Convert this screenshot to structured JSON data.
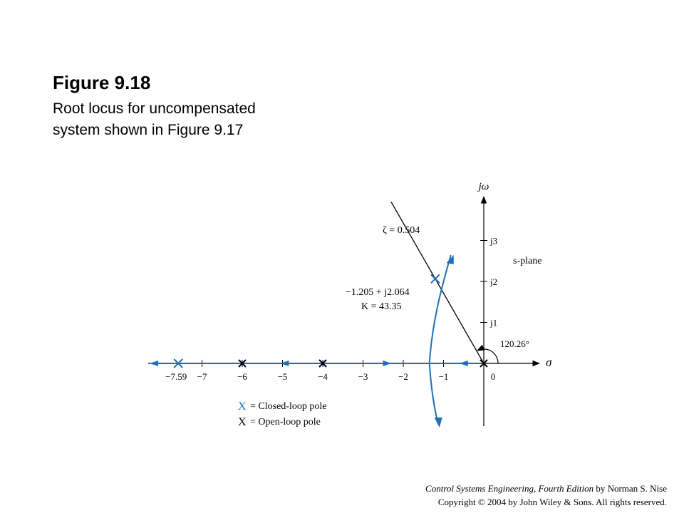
{
  "figure": {
    "title": "Figure 9.18",
    "caption_lines": [
      "Root locus for uncompensated",
      "system shown in Figure 9.17"
    ]
  },
  "plot": {
    "jw_label": "jω",
    "sigma_label": "σ",
    "plane_label": "s-plane",
    "real_ticks": [
      {
        "value": -7,
        "label": "−7"
      },
      {
        "value": -6,
        "label": "−6"
      },
      {
        "value": -5,
        "label": "−5"
      },
      {
        "value": -4,
        "label": "−4"
      },
      {
        "value": -3,
        "label": "−3"
      },
      {
        "value": -2,
        "label": "−2"
      },
      {
        "value": -1,
        "label": "−1"
      },
      {
        "value": 0,
        "label": "0"
      }
    ],
    "extra_real_label": {
      "value": -7.59,
      "label": "−7.59"
    },
    "imag_ticks": [
      {
        "value": 1,
        "label": "j1"
      },
      {
        "value": 2,
        "label": "j2"
      },
      {
        "value": 3,
        "label": "j3"
      }
    ],
    "zeta_label": "ζ = 0.504",
    "point_label_line1": "−1.205 + j2.064",
    "point_label_line2": "K = 43.35",
    "angle_label": "120.26°",
    "open_loop_poles": [
      0,
      -4,
      -6
    ],
    "closed_loop_poles": [
      {
        "re": -1.205,
        "im": 2.064
      },
      {
        "re": -7.59,
        "im": 0
      }
    ],
    "locus_color": "#1f6fb2"
  },
  "legend": {
    "closed_loop": "= Closed-loop pole",
    "open_loop": "= Open-loop pole",
    "marker": "X"
  },
  "credits": {
    "line1_italic": "Control Systems Engineering, Fourth Edition",
    "line1_rest": " by Norman S. Nise",
    "line2": "Copyright © 2004 by John Wiley  & Sons. All rights reserved."
  }
}
